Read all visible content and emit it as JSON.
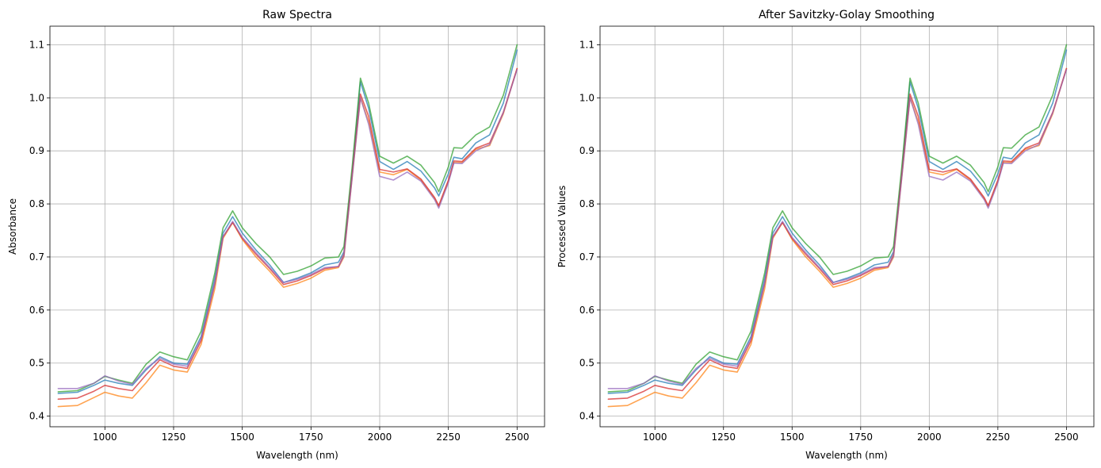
{
  "chart_data": [
    {
      "type": "line",
      "title": "Raw Spectra",
      "xlabel": "Wavelength (nm)",
      "ylabel": "Absorbance",
      "xlim": [
        800,
        2600
      ],
      "ylim": [
        0.38,
        1.135
      ],
      "xticks": [
        1000,
        1250,
        1500,
        1750,
        2000,
        2250,
        2500
      ],
      "yticks": [
        0.4,
        0.5,
        0.6,
        0.7,
        0.8,
        0.9,
        1.0,
        1.1
      ],
      "grid": true,
      "x": [
        830,
        900,
        960,
        1000,
        1050,
        1100,
        1150,
        1200,
        1250,
        1300,
        1350,
        1400,
        1430,
        1465,
        1500,
        1550,
        1600,
        1650,
        1700,
        1750,
        1800,
        1850,
        1870,
        1900,
        1930,
        1960,
        2000,
        2050,
        2100,
        2150,
        2200,
        2215,
        2250,
        2270,
        2300,
        2350,
        2400,
        2450,
        2500
      ],
      "series": [
        {
          "color": "#1f77b4",
          "values": [
            0.443,
            0.445,
            0.458,
            0.468,
            0.462,
            0.458,
            0.487,
            0.512,
            0.5,
            0.498,
            0.55,
            0.66,
            0.745,
            0.776,
            0.745,
            0.713,
            0.685,
            0.652,
            0.66,
            0.67,
            0.685,
            0.69,
            0.71,
            0.86,
            1.03,
            0.98,
            0.88,
            0.865,
            0.88,
            0.862,
            0.83,
            0.815,
            0.857,
            0.888,
            0.885,
            0.915,
            0.93,
            0.99,
            1.09
          ]
        },
        {
          "color": "#ff7f0e",
          "values": [
            0.418,
            0.42,
            0.435,
            0.445,
            0.438,
            0.434,
            0.463,
            0.496,
            0.487,
            0.483,
            0.535,
            0.64,
            0.735,
            0.765,
            0.733,
            0.7,
            0.673,
            0.643,
            0.65,
            0.66,
            0.675,
            0.68,
            0.7,
            0.85,
            1.0,
            0.955,
            0.86,
            0.855,
            0.865,
            0.845,
            0.81,
            0.795,
            0.843,
            0.878,
            0.878,
            0.903,
            0.91,
            0.97,
            1.055
          ]
        },
        {
          "color": "#2ca02c",
          "values": [
            0.446,
            0.448,
            0.462,
            0.475,
            0.468,
            0.462,
            0.498,
            0.521,
            0.512,
            0.506,
            0.56,
            0.67,
            0.755,
            0.787,
            0.755,
            0.725,
            0.7,
            0.667,
            0.673,
            0.683,
            0.698,
            0.7,
            0.72,
            0.87,
            1.037,
            0.99,
            0.89,
            0.877,
            0.89,
            0.873,
            0.84,
            0.823,
            0.87,
            0.906,
            0.905,
            0.93,
            0.945,
            1.005,
            1.1
          ]
        },
        {
          "color": "#d62728",
          "values": [
            0.432,
            0.434,
            0.447,
            0.458,
            0.452,
            0.448,
            0.478,
            0.506,
            0.494,
            0.49,
            0.542,
            0.65,
            0.738,
            0.765,
            0.735,
            0.705,
            0.678,
            0.648,
            0.655,
            0.665,
            0.678,
            0.682,
            0.705,
            0.855,
            1.007,
            0.965,
            0.865,
            0.86,
            0.866,
            0.847,
            0.812,
            0.797,
            0.845,
            0.881,
            0.88,
            0.905,
            0.915,
            0.973,
            1.055
          ]
        },
        {
          "color": "#9467bd",
          "values": [
            0.452,
            0.452,
            0.462,
            0.476,
            0.466,
            0.46,
            0.49,
            0.509,
            0.498,
            0.494,
            0.546,
            0.65,
            0.738,
            0.767,
            0.737,
            0.708,
            0.68,
            0.652,
            0.658,
            0.667,
            0.68,
            0.682,
            0.702,
            0.85,
            1.0,
            0.95,
            0.852,
            0.845,
            0.86,
            0.843,
            0.808,
            0.792,
            0.84,
            0.877,
            0.876,
            0.9,
            0.912,
            0.972,
            1.053
          ]
        }
      ]
    },
    {
      "type": "line",
      "title": "After Savitzky-Golay Smoothing",
      "xlabel": "Wavelength (nm)",
      "ylabel": "Processed Values",
      "xlim": [
        800,
        2600
      ],
      "ylim": [
        0.38,
        1.135
      ],
      "xticks": [
        1000,
        1250,
        1500,
        1750,
        2000,
        2250,
        2500
      ],
      "yticks": [
        0.4,
        0.5,
        0.6,
        0.7,
        0.8,
        0.9,
        1.0,
        1.1
      ],
      "grid": true,
      "x": [
        830,
        900,
        960,
        1000,
        1050,
        1100,
        1150,
        1200,
        1250,
        1300,
        1350,
        1400,
        1430,
        1465,
        1500,
        1550,
        1600,
        1650,
        1700,
        1750,
        1800,
        1850,
        1870,
        1900,
        1930,
        1960,
        2000,
        2050,
        2100,
        2150,
        2200,
        2215,
        2250,
        2270,
        2300,
        2350,
        2400,
        2450,
        2500
      ],
      "series": [
        {
          "color": "#1f77b4",
          "values": [
            0.443,
            0.445,
            0.458,
            0.468,
            0.462,
            0.458,
            0.487,
            0.512,
            0.5,
            0.498,
            0.55,
            0.66,
            0.745,
            0.776,
            0.745,
            0.713,
            0.685,
            0.652,
            0.66,
            0.67,
            0.685,
            0.69,
            0.71,
            0.86,
            1.03,
            0.98,
            0.88,
            0.865,
            0.88,
            0.862,
            0.83,
            0.815,
            0.857,
            0.888,
            0.885,
            0.915,
            0.93,
            0.99,
            1.09
          ]
        },
        {
          "color": "#ff7f0e",
          "values": [
            0.418,
            0.42,
            0.435,
            0.445,
            0.438,
            0.434,
            0.463,
            0.496,
            0.487,
            0.483,
            0.535,
            0.64,
            0.735,
            0.765,
            0.733,
            0.7,
            0.673,
            0.643,
            0.65,
            0.66,
            0.675,
            0.68,
            0.7,
            0.85,
            1.0,
            0.955,
            0.86,
            0.855,
            0.865,
            0.845,
            0.81,
            0.795,
            0.843,
            0.878,
            0.878,
            0.903,
            0.91,
            0.97,
            1.055
          ]
        },
        {
          "color": "#2ca02c",
          "values": [
            0.446,
            0.448,
            0.462,
            0.475,
            0.468,
            0.462,
            0.498,
            0.521,
            0.512,
            0.506,
            0.56,
            0.67,
            0.755,
            0.787,
            0.755,
            0.725,
            0.7,
            0.667,
            0.673,
            0.683,
            0.698,
            0.7,
            0.72,
            0.87,
            1.037,
            0.99,
            0.89,
            0.877,
            0.89,
            0.873,
            0.84,
            0.823,
            0.87,
            0.906,
            0.905,
            0.93,
            0.945,
            1.005,
            1.1
          ]
        },
        {
          "color": "#d62728",
          "values": [
            0.432,
            0.434,
            0.447,
            0.458,
            0.452,
            0.448,
            0.478,
            0.506,
            0.494,
            0.49,
            0.542,
            0.65,
            0.738,
            0.765,
            0.735,
            0.705,
            0.678,
            0.648,
            0.655,
            0.665,
            0.678,
            0.682,
            0.705,
            0.855,
            1.007,
            0.965,
            0.865,
            0.86,
            0.866,
            0.847,
            0.812,
            0.797,
            0.845,
            0.881,
            0.88,
            0.905,
            0.915,
            0.973,
            1.055
          ]
        },
        {
          "color": "#9467bd",
          "values": [
            0.452,
            0.452,
            0.462,
            0.476,
            0.466,
            0.46,
            0.49,
            0.509,
            0.498,
            0.494,
            0.546,
            0.65,
            0.738,
            0.767,
            0.737,
            0.708,
            0.68,
            0.652,
            0.658,
            0.667,
            0.68,
            0.682,
            0.702,
            0.85,
            1.0,
            0.95,
            0.852,
            0.845,
            0.86,
            0.843,
            0.808,
            0.792,
            0.84,
            0.877,
            0.876,
            0.9,
            0.912,
            0.972,
            1.053
          ]
        }
      ]
    }
  ]
}
